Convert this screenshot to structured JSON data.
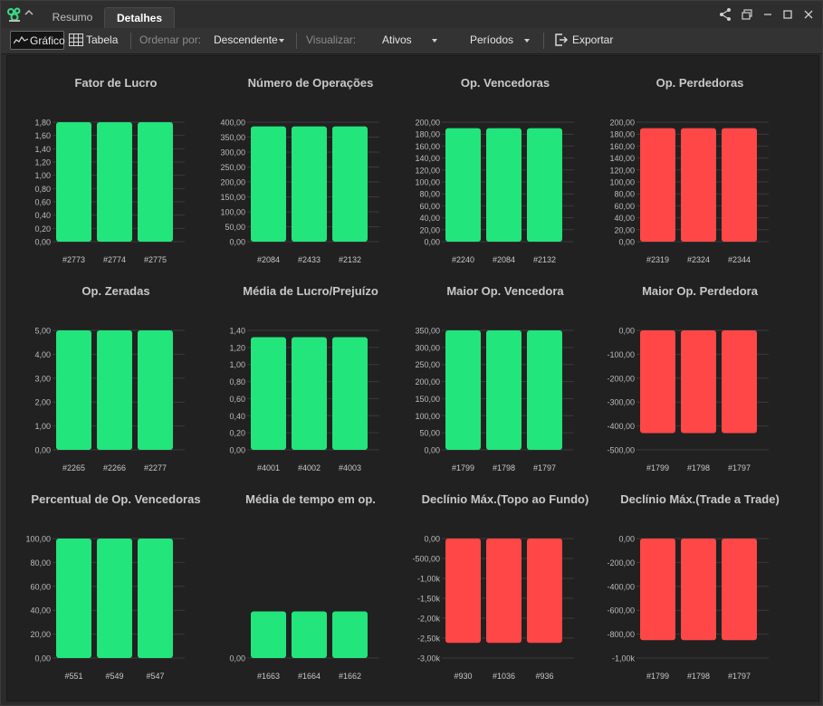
{
  "tabs": [
    {
      "label": "Resumo",
      "active": false
    },
    {
      "label": "Detalhes",
      "active": true
    }
  ],
  "toolbar": {
    "grafico_label": "Gráfico",
    "tabela_label": "Tabela",
    "ordenar_label": "Ordenar por:",
    "ordenar_value": "Descendente",
    "visualizar_label": "Visualizar:",
    "ativos_value": "Ativos",
    "periodos_value": "Períodos",
    "exportar_label": "Exportar"
  },
  "icons": {
    "logo": "gear-cluster-icon",
    "collapse": "chevron-up-icon",
    "share": "share-icon",
    "restore": "restore-window-icon",
    "minimize": "minimize-icon",
    "maximize": "maximize-icon",
    "close": "close-icon",
    "grafico": "line-chart-icon",
    "tabela": "table-grid-icon",
    "exportar": "export-icon"
  },
  "colors": {
    "positive": "#22e57b",
    "negative": "#ff4747",
    "background": "#212121",
    "grid": "#3a3a3a"
  },
  "chart_data": [
    {
      "type": "bar",
      "title": "Fator de Lucro",
      "categories": [
        "#2773",
        "#2774",
        "#2775"
      ],
      "values": [
        1.8,
        1.8,
        1.8
      ],
      "ylim": [
        0,
        1.8
      ],
      "yticks": [
        0,
        0.2,
        0.4,
        0.6,
        0.8,
        1.0,
        1.2,
        1.4,
        1.6,
        1.8
      ],
      "yticklabels": [
        "0,00",
        "0,20",
        "0,40",
        "0,60",
        "0,80",
        "1,00",
        "1,20",
        "1,40",
        "1,60",
        "1,80"
      ],
      "color": "positive"
    },
    {
      "type": "bar",
      "title": "Número de Operações",
      "categories": [
        "#2084",
        "#2433",
        "#2132"
      ],
      "values": [
        386,
        386,
        386
      ],
      "ylim": [
        0,
        400
      ],
      "yticks": [
        0,
        50,
        100,
        150,
        200,
        250,
        300,
        350,
        400
      ],
      "yticklabels": [
        "0,00",
        "50,00",
        "100,00",
        "150,00",
        "200,00",
        "250,00",
        "300,00",
        "350,00",
        "400,00"
      ],
      "color": "positive"
    },
    {
      "type": "bar",
      "title": "Op. Vencedoras",
      "categories": [
        "#2240",
        "#2084",
        "#2132"
      ],
      "values": [
        190,
        190,
        190
      ],
      "ylim": [
        0,
        200
      ],
      "yticks": [
        0,
        20,
        40,
        60,
        80,
        100,
        120,
        140,
        160,
        180,
        200
      ],
      "yticklabels": [
        "0,00",
        "20,00",
        "40,00",
        "60,00",
        "80,00",
        "100,00",
        "120,00",
        "140,00",
        "160,00",
        "180,00",
        "200,00"
      ],
      "color": "positive"
    },
    {
      "type": "bar",
      "title": "Op. Perdedoras",
      "categories": [
        "#2319",
        "#2324",
        "#2344"
      ],
      "values": [
        190,
        190,
        190
      ],
      "ylim": [
        0,
        200
      ],
      "yticks": [
        0,
        20,
        40,
        60,
        80,
        100,
        120,
        140,
        160,
        180,
        200
      ],
      "yticklabels": [
        "0,00",
        "20,00",
        "40,00",
        "60,00",
        "80,00",
        "100,00",
        "120,00",
        "140,00",
        "160,00",
        "180,00",
        "200,00"
      ],
      "color": "negative"
    },
    {
      "type": "bar",
      "title": "Op. Zeradas",
      "categories": [
        "#2265",
        "#2266",
        "#2277"
      ],
      "values": [
        5,
        5,
        5
      ],
      "ylim": [
        0,
        5
      ],
      "yticks": [
        0,
        1,
        2,
        3,
        4,
        5
      ],
      "yticklabels": [
        "0,00",
        "1,00",
        "2,00",
        "3,00",
        "4,00",
        "5,00"
      ],
      "color": "positive"
    },
    {
      "type": "bar",
      "title": "Média de Lucro/Prejuízo",
      "categories": [
        "#4001",
        "#4002",
        "#4003"
      ],
      "values": [
        1.32,
        1.32,
        1.32
      ],
      "ylim": [
        0,
        1.4
      ],
      "yticks": [
        0,
        0.2,
        0.4,
        0.6,
        0.8,
        1.0,
        1.2,
        1.4
      ],
      "yticklabels": [
        "0,00",
        "0,20",
        "0,40",
        "0,60",
        "0,80",
        "1,00",
        "1,20",
        "1,40"
      ],
      "color": "positive"
    },
    {
      "type": "bar",
      "title": "Maior Op. Vencedora",
      "categories": [
        "#1799",
        "#1798",
        "#1797"
      ],
      "values": [
        350,
        350,
        350
      ],
      "ylim": [
        0,
        350
      ],
      "yticks": [
        0,
        50,
        100,
        150,
        200,
        250,
        300,
        350
      ],
      "yticklabels": [
        "0,00",
        "50,00",
        "100,00",
        "150,00",
        "200,00",
        "250,00",
        "300,00",
        "350,00"
      ],
      "color": "positive"
    },
    {
      "type": "bar",
      "title": "Maior Op. Perdedora",
      "categories": [
        "#1799",
        "#1798",
        "#1797"
      ],
      "values": [
        -430,
        -430,
        -430
      ],
      "ylim": [
        -500,
        0
      ],
      "yticks": [
        0,
        -100,
        -200,
        -300,
        -400,
        -500
      ],
      "yticklabels": [
        "0,00",
        "-100,00",
        "-200,00",
        "-300,00",
        "-400,00",
        "-500,00"
      ],
      "color": "negative"
    },
    {
      "type": "bar",
      "title": "Percentual de Op. Vencedoras",
      "categories": [
        "#551",
        "#549",
        "#547"
      ],
      "values": [
        100,
        100,
        100
      ],
      "ylim": [
        0,
        100
      ],
      "yticks": [
        0,
        20,
        40,
        60,
        80,
        100
      ],
      "yticklabels": [
        "0,00",
        "20,00",
        "40,00",
        "60,00",
        "80,00",
        "100,00"
      ],
      "color": "positive"
    },
    {
      "type": "bar",
      "title": "Média de tempo em op.",
      "categories": [
        "#1663",
        "#1664",
        "#1662"
      ],
      "values": [
        0.39,
        0.39,
        0.39
      ],
      "ylim": [
        0,
        1
      ],
      "yticks": [
        0
      ],
      "yticklabels": [
        "0,00"
      ],
      "color": "positive"
    },
    {
      "type": "bar",
      "title": "Declínio Máx.(Topo ao Fundo)",
      "categories": [
        "#930",
        "#1036",
        "#936"
      ],
      "values": [
        -2620,
        -2620,
        -2620
      ],
      "ylim": [
        -3000,
        0
      ],
      "yticks": [
        0,
        -500,
        -1000,
        -1500,
        -2000,
        -2500,
        -3000
      ],
      "yticklabels": [
        "0,00",
        "-500,00",
        "-1,00k",
        "-1,50k",
        "-2,00k",
        "-2,50k",
        "-3,00k"
      ],
      "color": "negative"
    },
    {
      "type": "bar",
      "title": "Declínio Máx.(Trade a Trade)",
      "categories": [
        "#1799",
        "#1798",
        "#1797"
      ],
      "values": [
        -850,
        -850,
        -850
      ],
      "ylim": [
        -1000,
        0
      ],
      "yticks": [
        0,
        -200,
        -400,
        -600,
        -800,
        -1000
      ],
      "yticklabels": [
        "0,00",
        "-200,00",
        "-400,00",
        "-600,00",
        "-800,00",
        "-1,00k"
      ],
      "color": "negative"
    }
  ]
}
